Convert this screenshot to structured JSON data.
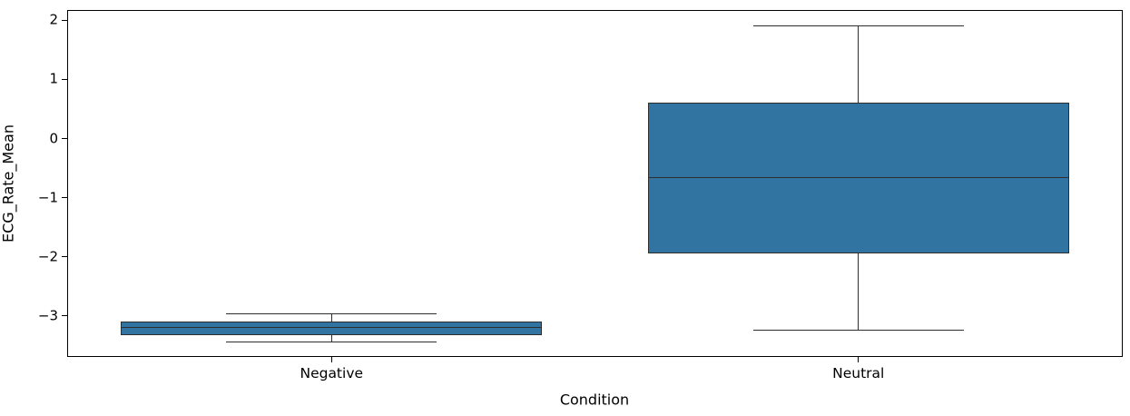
{
  "chart_data": {
    "type": "boxplot",
    "title": "",
    "xlabel": "Condition",
    "ylabel": "ECG_Rate_Mean",
    "categories": [
      "Negative",
      "Neutral"
    ],
    "boxes": [
      {
        "category": "Negative",
        "whisker_low": -3.44,
        "q1": -3.32,
        "median": -3.2,
        "q3": -3.09,
        "whisker_high": -2.96
      },
      {
        "category": "Neutral",
        "whisker_low": -3.24,
        "q1": -1.94,
        "median": -0.66,
        "q3": 0.61,
        "whisker_high": 1.91
      }
    ],
    "xlim": [
      -0.5,
      1.5
    ],
    "ylim": [
      -3.68,
      2.16
    ],
    "yticks": [
      2,
      1,
      0,
      -1,
      -2,
      -3
    ],
    "box_width": 0.8,
    "cap_width": 0.4,
    "box_fill_color": "#3274a1",
    "line_color": "#2e2e2e",
    "spine_color": "#000000",
    "grid": false,
    "legend": null
  }
}
